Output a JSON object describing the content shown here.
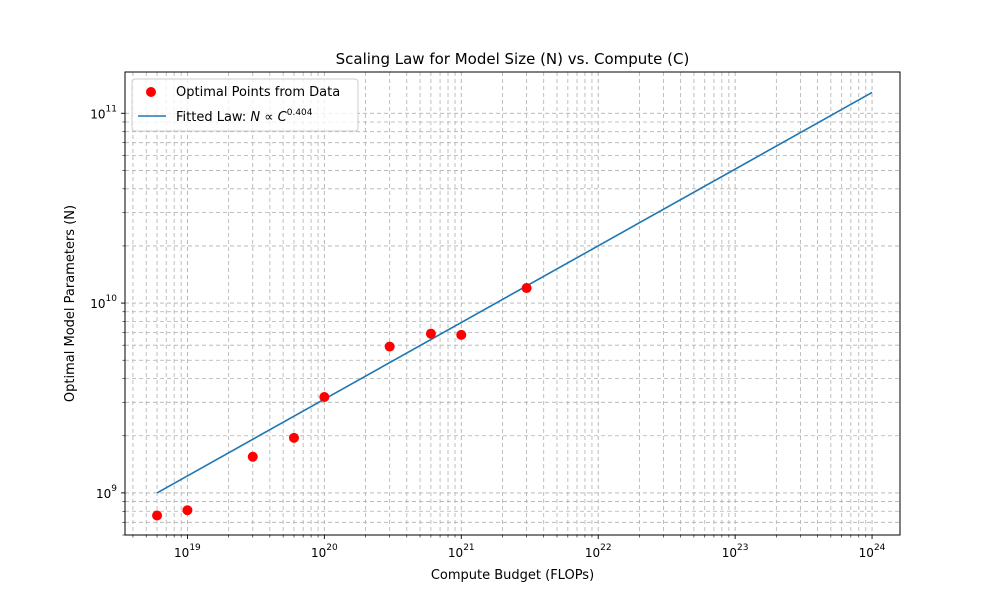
{
  "chart_data": {
    "type": "scatter",
    "title": "Scaling Law for Model Size (N) vs. Compute (C)",
    "xlabel": "Compute Budget (FLOPs)",
    "ylabel": "Optimal Model Parameters (N)",
    "xscale": "log",
    "yscale": "log",
    "xlim": [
      3.5e+18,
      1.6e+24
    ],
    "ylim": [
      600000000.0,
      165000000000.0
    ],
    "x_tick_exponents": [
      19,
      20,
      21,
      22,
      23,
      24
    ],
    "y_tick_exponents": [
      9,
      10,
      11
    ],
    "grid": "both, dashed, major and minor",
    "legend_location": "upper-left",
    "series": [
      {
        "name": "Optimal Points from Data",
        "kind": "scatter",
        "color": "#ff0000",
        "points": [
          {
            "x": 6e+18,
            "y": 760000000.0
          },
          {
            "x": 1e+19,
            "y": 810000000.0
          },
          {
            "x": 3e+19,
            "y": 1550000000.0
          },
          {
            "x": 6e+19,
            "y": 1950000000.0
          },
          {
            "x": 1e+20,
            "y": 3200000000.0
          },
          {
            "x": 3e+20,
            "y": 5900000000.0
          },
          {
            "x": 6e+20,
            "y": 6900000000.0
          },
          {
            "x": 1e+21,
            "y": 6800000000.0
          },
          {
            "x": 3e+21,
            "y": 12000000000.0
          }
        ]
      },
      {
        "name_prefix": "Fitted Law: ",
        "name_formula": "N ∝ C",
        "name_exponent": "0.404",
        "kind": "line",
        "color": "#1f77b4",
        "exponent": 0.404,
        "x_start": 6e+18,
        "y_start": 1000000000.0,
        "x_end": 1e+24
      }
    ]
  }
}
